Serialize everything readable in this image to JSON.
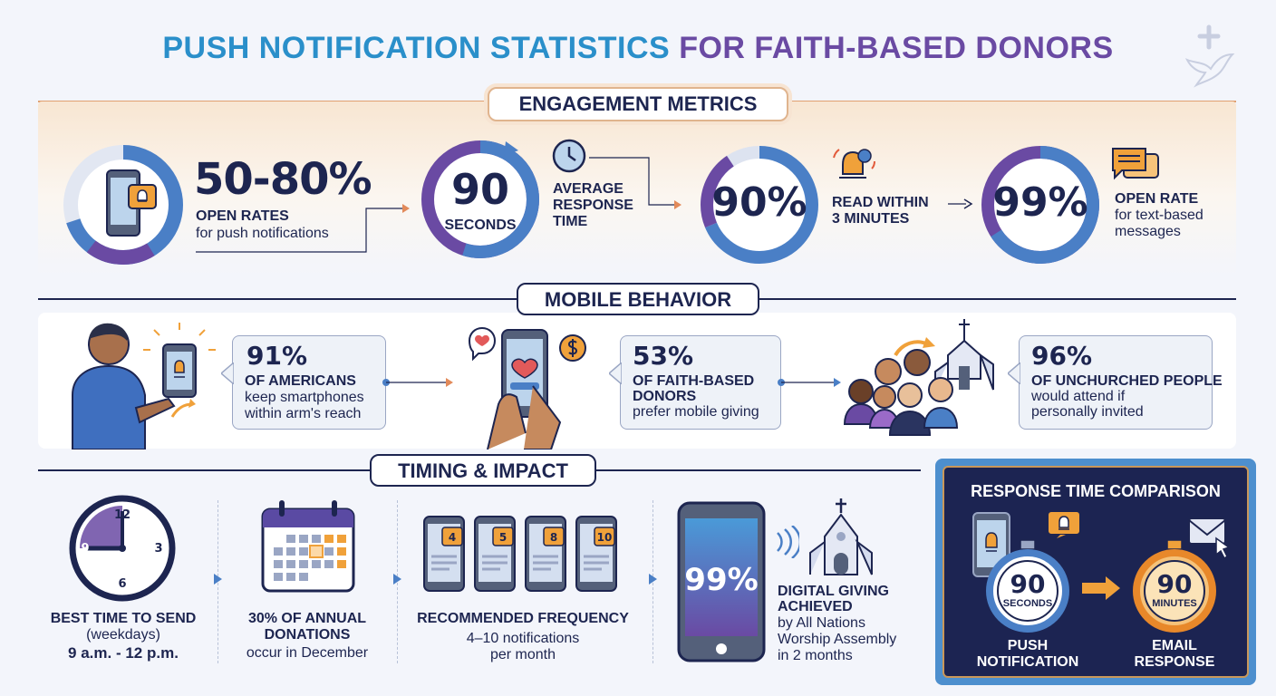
{
  "title": {
    "part1": "PUSH NOTIFICATION STATISTICS",
    "part2": "FOR FAITH-BASED DONORS"
  },
  "colors": {
    "blue": "#2a8fca",
    "purple": "#6a4aa3",
    "navy": "#1d2550",
    "orange": "#f0a13a",
    "gold": "#c9975a"
  },
  "sections": {
    "engagement": {
      "heading": "ENGAGEMENT METRICS",
      "metrics": [
        {
          "value": "50-80%",
          "label": "OPEN RATES",
          "sub": "for push notifications",
          "icon": "phone-bell-icon"
        },
        {
          "value": "90",
          "unit": "SECONDS",
          "label1": "AVERAGE",
          "label2": "RESPONSE",
          "label3": "TIME",
          "icon": "clock-icon"
        },
        {
          "value": "90%",
          "label1": "READ WITHIN",
          "label2": "3 MINUTES",
          "icon": "bell-icon"
        },
        {
          "value": "99%",
          "label": "OPEN RATE",
          "sub1": "for text-based",
          "sub2": "messages",
          "icon": "chat-icon"
        }
      ]
    },
    "mobile": {
      "heading": "MOBILE BEHAVIOR",
      "stats": [
        {
          "value": "91%",
          "label": "OF AMERICANS",
          "sub1": "keep smartphones",
          "sub2": "within arm's reach"
        },
        {
          "value": "53%",
          "label1": "OF FAITH-BASED",
          "label2": "DONORS",
          "sub": "prefer mobile giving"
        },
        {
          "value": "96%",
          "label": "OF UNCHURCHED PEOPLE",
          "sub1": "would attend if",
          "sub2": "personally invited"
        }
      ]
    },
    "timing": {
      "heading": "TIMING & IMPACT",
      "items": [
        {
          "label": "BEST TIME TO SEND",
          "sub": "(weekdays)",
          "value": "9 a.m. - 12 p.m."
        },
        {
          "label1": "30% OF ANNUAL",
          "label2": "DONATIONS",
          "sub": "occur in December"
        },
        {
          "label": "RECOMMENDED FREQUENCY",
          "value": "4–10 notifications",
          "sub": "per month"
        },
        {
          "value": "99%",
          "label1": "DIGITAL GIVING",
          "label2": "ACHIEVED",
          "sub1": "by All Nations",
          "sub2": "Worship Assembly",
          "sub3": "in 2 months"
        }
      ],
      "clock_numbers": {
        "n12": "12",
        "n3": "3",
        "n6": "6",
        "n9": "9"
      },
      "badges": [
        "4",
        "5",
        "8",
        "10"
      ]
    }
  },
  "comparison": {
    "title": "RESPONSE TIME COMPARISON",
    "push": {
      "value": "90",
      "unit": "SECONDS",
      "label1": "PUSH",
      "label2": "NOTIFICATION"
    },
    "email": {
      "value": "90",
      "unit": "MINUTES",
      "label1": "EMAIL",
      "label2": "RESPONSE"
    }
  }
}
